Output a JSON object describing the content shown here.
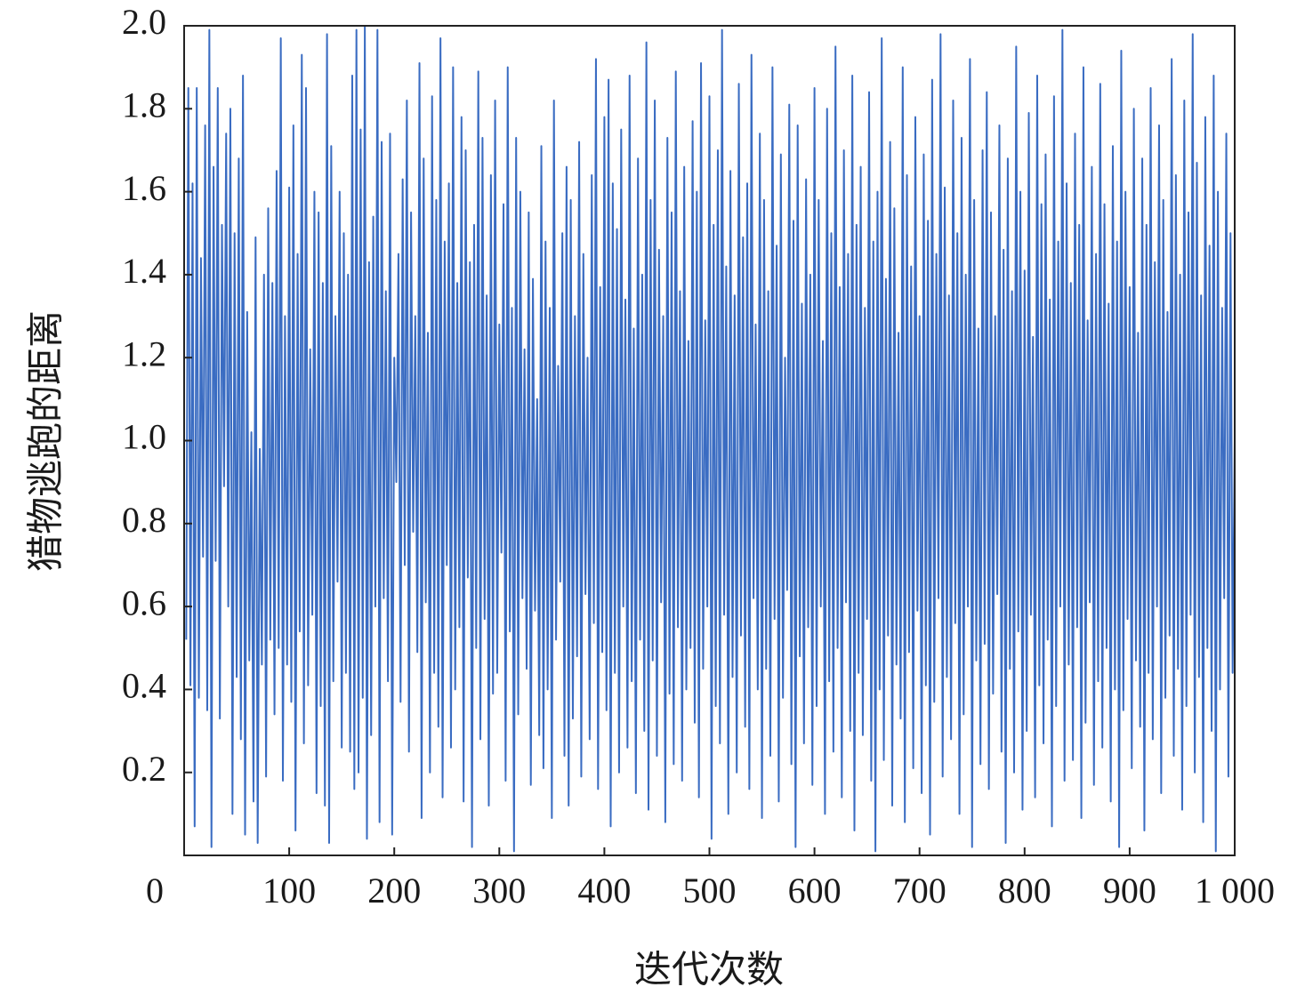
{
  "chart_data": {
    "type": "line",
    "x_label": "迭代次数",
    "y_label": "猎物逃跑的距离",
    "xlim": [
      0,
      1000
    ],
    "ylim": [
      0,
      2
    ],
    "xticks": [
      0,
      100,
      200,
      300,
      400,
      500,
      600,
      700,
      800,
      900,
      {
        "value": 1000,
        "label": "1 000"
      }
    ],
    "yticks": [
      0.2,
      0.4,
      0.6,
      0.8,
      {
        "value": 1,
        "label": "1.0"
      },
      1.2,
      1.4,
      1.6,
      1.8,
      {
        "value": 2,
        "label": "2.0"
      }
    ],
    "x": [
      2,
      4,
      6,
      8,
      10,
      12,
      14,
      16,
      18,
      20,
      22,
      24,
      26,
      28,
      30,
      32,
      34,
      36,
      38,
      40,
      42,
      44,
      46,
      48,
      50,
      52,
      54,
      56,
      58,
      60,
      62,
      64,
      66,
      68,
      70,
      72,
      74,
      76,
      78,
      80,
      82,
      84,
      86,
      88,
      90,
      92,
      94,
      96,
      98,
      100,
      102,
      104,
      106,
      108,
      110,
      112,
      114,
      116,
      118,
      120,
      122,
      124,
      126,
      128,
      130,
      132,
      134,
      136,
      138,
      140,
      142,
      144,
      146,
      148,
      150,
      152,
      154,
      156,
      158,
      160,
      162,
      164,
      166,
      168,
      170,
      172,
      174,
      176,
      178,
      180,
      182,
      184,
      186,
      188,
      190,
      192,
      194,
      196,
      198,
      200,
      202,
      204,
      206,
      208,
      210,
      212,
      214,
      216,
      218,
      220,
      222,
      224,
      226,
      228,
      230,
      232,
      234,
      236,
      238,
      240,
      242,
      244,
      246,
      248,
      250,
      252,
      254,
      256,
      258,
      260,
      262,
      264,
      266,
      268,
      270,
      272,
      274,
      276,
      278,
      280,
      282,
      284,
      286,
      288,
      290,
      292,
      294,
      296,
      298,
      300,
      302,
      304,
      306,
      308,
      310,
      312,
      314,
      316,
      318,
      320,
      322,
      324,
      326,
      328,
      330,
      332,
      334,
      336,
      338,
      340,
      342,
      344,
      346,
      348,
      350,
      352,
      354,
      356,
      358,
      360,
      362,
      364,
      366,
      368,
      370,
      372,
      374,
      376,
      378,
      380,
      382,
      384,
      386,
      388,
      390,
      392,
      394,
      396,
      398,
      400,
      402,
      404,
      406,
      408,
      410,
      412,
      414,
      416,
      418,
      420,
      422,
      424,
      426,
      428,
      430,
      432,
      434,
      436,
      438,
      440,
      442,
      444,
      446,
      448,
      450,
      452,
      454,
      456,
      458,
      460,
      462,
      464,
      466,
      468,
      470,
      472,
      474,
      476,
      478,
      480,
      482,
      484,
      486,
      488,
      490,
      492,
      494,
      496,
      498,
      500,
      502,
      504,
      506,
      508,
      510,
      512,
      514,
      516,
      518,
      520,
      522,
      524,
      526,
      528,
      530,
      532,
      534,
      536,
      538,
      540,
      542,
      544,
      546,
      548,
      550,
      552,
      554,
      556,
      558,
      560,
      562,
      564,
      566,
      568,
      570,
      572,
      574,
      576,
      578,
      580,
      582,
      584,
      586,
      588,
      590,
      592,
      594,
      596,
      598,
      600,
      602,
      604,
      606,
      608,
      610,
      612,
      614,
      616,
      618,
      620,
      622,
      624,
      626,
      628,
      630,
      632,
      634,
      636,
      638,
      640,
      642,
      644,
      646,
      648,
      650,
      652,
      654,
      656,
      658,
      660,
      662,
      664,
      666,
      668,
      670,
      672,
      674,
      676,
      678,
      680,
      682,
      684,
      686,
      688,
      690,
      692,
      694,
      696,
      698,
      700,
      702,
      704,
      706,
      708,
      710,
      712,
      714,
      716,
      718,
      720,
      722,
      724,
      726,
      728,
      730,
      732,
      734,
      736,
      738,
      740,
      742,
      744,
      746,
      748,
      750,
      752,
      754,
      756,
      758,
      760,
      762,
      764,
      766,
      768,
      770,
      772,
      774,
      776,
      778,
      780,
      782,
      784,
      786,
      788,
      790,
      792,
      794,
      796,
      798,
      800,
      802,
      804,
      806,
      808,
      810,
      812,
      814,
      816,
      818,
      820,
      822,
      824,
      826,
      828,
      830,
      832,
      834,
      836,
      838,
      840,
      842,
      844,
      846,
      848,
      850,
      852,
      854,
      856,
      858,
      860,
      862,
      864,
      866,
      868,
      870,
      872,
      874,
      876,
      878,
      880,
      882,
      884,
      886,
      888,
      890,
      892,
      894,
      896,
      898,
      900,
      902,
      904,
      906,
      908,
      910,
      912,
      914,
      916,
      918,
      920,
      922,
      924,
      926,
      928,
      930,
      932,
      934,
      936,
      938,
      940,
      942,
      944,
      946,
      948,
      950,
      952,
      954,
      956,
      958,
      960,
      962,
      964,
      966,
      968,
      970,
      972,
      974,
      976,
      978,
      980,
      982,
      984,
      986,
      988,
      990,
      992,
      994,
      996,
      998,
      1000
    ],
    "series": [
      {
        "color": "#3a6cc2",
        "values": [
          0.52,
          1.85,
          0.41,
          1.62,
          0.07,
          1.85,
          0.38,
          1.44,
          0.72,
          1.76,
          0.35,
          1.99,
          0.02,
          1.66,
          0.71,
          1.85,
          0.33,
          1.52,
          0.89,
          1.74,
          0.6,
          1.8,
          0.1,
          1.5,
          0.43,
          1.68,
          0.28,
          1.88,
          0.05,
          1.31,
          0.47,
          1.02,
          0.13,
          1.49,
          0.03,
          0.98,
          0.46,
          1.4,
          0.19,
          1.56,
          0.52,
          1.38,
          0.34,
          1.65,
          0.5,
          1.97,
          0.18,
          1.3,
          0.46,
          1.61,
          0.37,
          1.76,
          0.06,
          1.45,
          0.54,
          1.93,
          0.27,
          1.85,
          0.41,
          1.22,
          0.58,
          1.6,
          0.15,
          1.55,
          0.36,
          1.38,
          0.12,
          1.98,
          0.03,
          1.71,
          0.42,
          1.3,
          0.66,
          1.6,
          0.26,
          1.5,
          0.44,
          1.4,
          0.25,
          1.88,
          0.16,
          1.99,
          0.2,
          1.75,
          0.38,
          2.0,
          0.04,
          1.43,
          0.29,
          1.54,
          0.6,
          1.99,
          0.08,
          1.72,
          0.62,
          1.36,
          0.42,
          1.74,
          0.05,
          1.2,
          0.9,
          1.45,
          0.37,
          1.63,
          0.7,
          1.82,
          0.25,
          1.55,
          0.78,
          1.3,
          0.49,
          1.91,
          0.09,
          1.68,
          0.61,
          1.26,
          0.2,
          1.83,
          0.44,
          1.58,
          0.31,
          1.97,
          0.14,
          1.48,
          0.7,
          1.62,
          0.26,
          1.9,
          0.4,
          1.38,
          0.55,
          1.78,
          0.13,
          1.7,
          0.67,
          1.43,
          0.02,
          1.52,
          0.5,
          1.89,
          0.28,
          1.73,
          0.57,
          1.35,
          0.12,
          1.64,
          0.39,
          1.82,
          0.44,
          1.28,
          0.73,
          1.57,
          0.18,
          1.9,
          0.54,
          1.32,
          0.01,
          1.73,
          0.34,
          1.6,
          0.62,
          1.22,
          0.45,
          1.55,
          0.17,
          1.39,
          0.59,
          1.1,
          0.29,
          1.71,
          0.21,
          1.48,
          0.4,
          1.32,
          0.09,
          1.82,
          0.52,
          1.18,
          0.66,
          1.5,
          0.24,
          1.66,
          0.12,
          1.58,
          0.33,
          1.3,
          0.48,
          1.72,
          0.19,
          1.45,
          0.63,
          1.2,
          0.28,
          1.64,
          0.56,
          1.92,
          0.16,
          1.37,
          0.49,
          1.78,
          0.35,
          1.87,
          0.07,
          1.62,
          0.44,
          1.51,
          0.2,
          1.75,
          0.6,
          1.34,
          0.26,
          1.88,
          0.42,
          1.27,
          0.15,
          1.68,
          0.52,
          1.4,
          0.3,
          1.96,
          0.11,
          1.58,
          0.47,
          1.82,
          0.24,
          1.46,
          0.61,
          1.3,
          0.08,
          1.73,
          0.39,
          1.55,
          0.22,
          1.89,
          0.55,
          1.36,
          0.18,
          1.66,
          0.4,
          1.24,
          0.5,
          1.77,
          0.32,
          1.6,
          0.14,
          1.91,
          0.45,
          1.29,
          0.6,
          1.83,
          0.04,
          1.52,
          0.36,
          1.7,
          0.27,
          1.99,
          0.58,
          1.42,
          0.1,
          1.65,
          0.43,
          1.35,
          0.2,
          1.86,
          0.53,
          1.49,
          0.31,
          1.62,
          0.16,
          1.93,
          0.62,
          1.28,
          0.4,
          1.74,
          0.09,
          1.58,
          0.45,
          1.36,
          0.24,
          1.9,
          0.57,
          1.47,
          0.13,
          1.69,
          0.38,
          1.2,
          0.64,
          1.81,
          0.22,
          1.53,
          0.02,
          1.76,
          0.48,
          1.33,
          0.27,
          1.63,
          0.55,
          1.4,
          0.17,
          1.85,
          0.36,
          1.58,
          0.6,
          1.24,
          0.1,
          1.8,
          0.42,
          1.5,
          0.25,
          1.95,
          0.5,
          1.37,
          0.14,
          1.7,
          0.61,
          1.45,
          0.3,
          1.88,
          0.06,
          1.52,
          0.44,
          1.66,
          0.29,
          1.32,
          0.57,
          1.84,
          0.18,
          1.48,
          0.01,
          1.6,
          0.4,
          1.97,
          0.23,
          1.39,
          0.53,
          1.72,
          0.12,
          1.56,
          0.46,
          1.26,
          0.33,
          1.9,
          0.08,
          1.64,
          0.49,
          1.42,
          0.21,
          1.78,
          0.59,
          1.3,
          0.15,
          1.69,
          0.41,
          1.53,
          0.05,
          1.87,
          0.37,
          1.45,
          0.62,
          1.98,
          0.19,
          1.61,
          0.43,
          1.35,
          0.28,
          1.82,
          0.56,
          1.5,
          0.1,
          1.73,
          0.34,
          1.4,
          0.6,
          1.92,
          0.02,
          1.58,
          0.47,
          1.27,
          0.22,
          1.7,
          0.51,
          1.84,
          0.16,
          1.55,
          0.39,
          1.3,
          0.63,
          1.76,
          0.25,
          1.46,
          0.03,
          1.68,
          0.45,
          1.36,
          0.2,
          1.95,
          0.54,
          1.6,
          0.11,
          1.41,
          0.3,
          1.79,
          0.58,
          1.25,
          0.14,
          1.88,
          0.41,
          1.57,
          0.27,
          1.69,
          0.52,
          1.34,
          0.07,
          1.83,
          0.36,
          1.48,
          0.6,
          1.99,
          0.18,
          1.62,
          0.46,
          1.38,
          0.23,
          1.74,
          0.55,
          1.52,
          0.09,
          1.9,
          0.32,
          1.29,
          0.61,
          1.66,
          0.17,
          1.45,
          0.42,
          1.86,
          0.26,
          1.57,
          0.5,
          1.33,
          0.13,
          1.71,
          0.4,
          1.48,
          0.02,
          1.94,
          0.35,
          1.6,
          0.57,
          1.37,
          0.21,
          1.8,
          0.47,
          1.26,
          0.31,
          1.68,
          0.06,
          1.52,
          0.44,
          1.85,
          0.28,
          1.43,
          0.6,
          1.76,
          0.15,
          1.58,
          0.38,
          1.31,
          0.53,
          1.92,
          0.24,
          1.64,
          0.45,
          1.4,
          0.11,
          1.82,
          0.36,
          1.55,
          0.58,
          1.98,
          0.2,
          1.67,
          0.43,
          1.35,
          0.08,
          1.78,
          0.5,
          1.47,
          0.3,
          1.88,
          0.01,
          1.6,
          0.4,
          1.32,
          0.62,
          1.74,
          0.19,
          1.5,
          0.44,
          1.0
        ]
      }
    ]
  }
}
